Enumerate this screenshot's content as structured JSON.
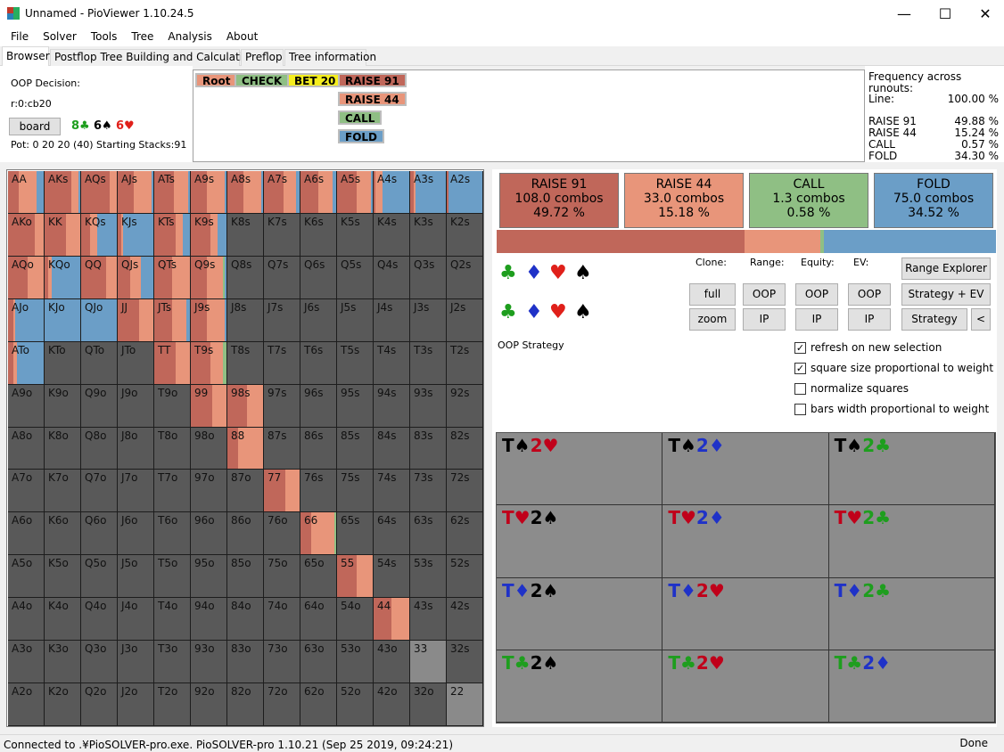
{
  "window": {
    "title": "Unnamed - PioViewer 1.10.24.5",
    "minimize": "—",
    "maximize": "☐",
    "close": "✕"
  },
  "menu": [
    "File",
    "Solver",
    "Tools",
    "Tree",
    "Analysis",
    "About"
  ],
  "tabs": [
    "Browser",
    "Postflop Tree Building and Calculations",
    "Preflop",
    "Tree information"
  ],
  "info": {
    "decision": "OOP Decision:",
    "node": "r:0:cb20",
    "board_button": "board",
    "board_cards": [
      {
        "text": "8♣",
        "color": "#1e9e1e"
      },
      {
        "text": "6♠",
        "color": "#000000"
      },
      {
        "text": "6♥",
        "color": "#e0201a"
      }
    ],
    "pot": "Pot: 0 20 20 (40) Starting Stacks:91"
  },
  "tree_line": [
    {
      "label": "Root",
      "color": "#e8957a"
    },
    {
      "label": "CHECK",
      "color": "#8fbf84"
    },
    {
      "label": "BET 20",
      "color": "#f5ee1e"
    },
    {
      "label": "RAISE 91",
      "color": "#c0675a"
    },
    {
      "label": "RAISE 44",
      "color": "#e8957a"
    },
    {
      "label": "CALL",
      "color": "#8fbf84"
    },
    {
      "label": "FOLD",
      "color": "#6b9ec7"
    }
  ],
  "frequency": {
    "title": "Frequency across runouts:",
    "line_label": "Line:",
    "line_value": "100.00 %",
    "rows": [
      {
        "label": "RAISE 91",
        "value": "49.88 %"
      },
      {
        "label": "RAISE 44",
        "value": "15.24 %"
      },
      {
        "label": "CALL",
        "value": "0.57 %"
      },
      {
        "label": "FOLD",
        "value": "34.30 %"
      }
    ]
  },
  "colors": {
    "raise91": "#c0675a",
    "raise44": "#e8957a",
    "call": "#8fbf84",
    "fold": "#6b9ec7",
    "empty": "#595959"
  },
  "grid": {
    "hands": [
      [
        "AA",
        "AKs",
        "AQs",
        "AJs",
        "ATs",
        "A9s",
        "A8s",
        "A7s",
        "A6s",
        "A5s",
        "A4s",
        "A3s",
        "A2s"
      ],
      [
        "AKo",
        "KK",
        "KQs",
        "KJs",
        "KTs",
        "K9s",
        "K8s",
        "K7s",
        "K6s",
        "K5s",
        "K4s",
        "K3s",
        "K2s"
      ],
      [
        "AQo",
        "KQo",
        "QQ",
        "QJs",
        "QTs",
        "Q9s",
        "Q8s",
        "Q7s",
        "Q6s",
        "Q5s",
        "Q4s",
        "Q3s",
        "Q2s"
      ],
      [
        "AJo",
        "KJo",
        "QJo",
        "JJ",
        "JTs",
        "J9s",
        "J8s",
        "J7s",
        "J6s",
        "J5s",
        "J4s",
        "J3s",
        "J2s"
      ],
      [
        "ATo",
        "KTo",
        "QTo",
        "JTo",
        "TT",
        "T9s",
        "T8s",
        "T7s",
        "T6s",
        "T5s",
        "T4s",
        "T3s",
        "T2s"
      ],
      [
        "A9o",
        "K9o",
        "Q9o",
        "J9o",
        "T9o",
        "99",
        "98s",
        "97s",
        "96s",
        "95s",
        "94s",
        "93s",
        "92s"
      ],
      [
        "A8o",
        "K8o",
        "Q8o",
        "J8o",
        "T8o",
        "98o",
        "88",
        "87s",
        "86s",
        "85s",
        "84s",
        "83s",
        "82s"
      ],
      [
        "A7o",
        "K7o",
        "Q7o",
        "J7o",
        "T7o",
        "97o",
        "87o",
        "77",
        "76s",
        "75s",
        "74s",
        "73s",
        "72s"
      ],
      [
        "A6o",
        "K6o",
        "Q6o",
        "J6o",
        "T6o",
        "96o",
        "86o",
        "76o",
        "66",
        "65s",
        "64s",
        "63s",
        "62s"
      ],
      [
        "A5o",
        "K5o",
        "Q5o",
        "J5o",
        "T5o",
        "95o",
        "85o",
        "75o",
        "65o",
        "55",
        "54s",
        "53s",
        "52s"
      ],
      [
        "A4o",
        "K4o",
        "Q4o",
        "J4o",
        "T4o",
        "94o",
        "84o",
        "74o",
        "64o",
        "54o",
        "44",
        "43s",
        "42s"
      ],
      [
        "A3o",
        "K3o",
        "Q3o",
        "J3o",
        "T3o",
        "93o",
        "83o",
        "73o",
        "63o",
        "53o",
        "43o",
        "33",
        "32s"
      ],
      [
        "A2o",
        "K2o",
        "Q2o",
        "J2o",
        "T2o",
        "92o",
        "82o",
        "72o",
        "62o",
        "52o",
        "42o",
        "32o",
        "22"
      ]
    ],
    "strategies": {
      "AA": [
        0.3,
        0.5,
        0,
        0.2
      ],
      "AKs": [
        0.75,
        0.2,
        0,
        0.05
      ],
      "AQs": [
        0.8,
        0.2,
        0,
        0
      ],
      "AJs": [
        0.45,
        0.5,
        0,
        0.05
      ],
      "ATs": [
        0.55,
        0.4,
        0,
        0.05
      ],
      "A9s": [
        0.45,
        0.5,
        0,
        0.05
      ],
      "A8s": [
        0.45,
        0.5,
        0,
        0.05
      ],
      "A7s": [
        0.55,
        0.35,
        0,
        0.1
      ],
      "A6s": [
        0.5,
        0.4,
        0,
        0.1
      ],
      "A5s": [
        0.55,
        0.4,
        0,
        0.05
      ],
      "A4s": [
        0.05,
        0.2,
        0,
        0.75
      ],
      "A3s": [
        0.1,
        0.05,
        0,
        0.85
      ],
      "A2s": [
        0.05,
        0,
        0,
        0.95
      ],
      "AKo": [
        0.75,
        0.25,
        0,
        0
      ],
      "KK": [
        0.6,
        0.4,
        0,
        0
      ],
      "KQs": [
        0.25,
        0.2,
        0,
        0.55
      ],
      "KJs": [
        0.1,
        0.05,
        0,
        0.85
      ],
      "KTs": [
        0.6,
        0.2,
        0,
        0.2
      ],
      "K9s": [
        0.55,
        0.2,
        0,
        0.25
      ],
      "AQo": [
        0.55,
        0.45,
        0,
        0
      ],
      "KQo": [
        0.1,
        0.1,
        0,
        0.8
      ],
      "QQ": [
        0.7,
        0.3,
        0,
        0
      ],
      "QJs": [
        0.35,
        0.3,
        0,
        0.35
      ],
      "QTs": [
        0.5,
        0.5,
        0,
        0
      ],
      "Q9s": [
        0.45,
        0.45,
        0.05,
        0.05
      ],
      "AJo": [
        0.15,
        0.05,
        0,
        0.8
      ],
      "KJo": [
        0,
        0,
        0,
        1
      ],
      "QJo": [
        0,
        0,
        0,
        1
      ],
      "JJ": [
        0.6,
        0.4,
        0,
        0
      ],
      "JTs": [
        0.5,
        0.4,
        0,
        0.1
      ],
      "J9s": [
        0.45,
        0.5,
        0,
        0.05
      ],
      "ATo": [
        0.15,
        0.1,
        0,
        0.75
      ],
      "TT": [
        0.6,
        0.4,
        0,
        0
      ],
      "T9s": [
        0.55,
        0.35,
        0.1,
        0
      ],
      "99": [
        0.6,
        0.4,
        0,
        0
      ],
      "98s": [
        0.55,
        0.45,
        0,
        0
      ],
      "88": [
        0.3,
        0.7,
        0,
        0
      ],
      "77": [
        0.6,
        0.4,
        0,
        0
      ],
      "66": [
        0.3,
        0.65,
        0.05,
        0
      ],
      "55": [
        0.55,
        0.45,
        0,
        0
      ],
      "44": [
        0.5,
        0.5,
        0,
        0
      ],
      "33": [
        0,
        0,
        0,
        0
      ],
      "22": [
        0,
        0,
        0,
        0
      ]
    }
  },
  "actions": [
    {
      "name": "RAISE 91",
      "combos": "108.0 combos",
      "pct": "49.72 %",
      "share": 0.4972
    },
    {
      "name": "RAISE 44",
      "combos": "33.0 combos",
      "pct": "15.18 %",
      "share": 0.1518
    },
    {
      "name": "CALL",
      "combos": "1.3 combos",
      "pct": "0.58 %",
      "share": 0.0058
    },
    {
      "name": "FOLD",
      "combos": "75.0 combos",
      "pct": "34.52 %",
      "share": 0.3452
    }
  ],
  "controls": {
    "clone_label": "Clone:",
    "range_label": "Range:",
    "equity_label": "Equity:",
    "ev_label": "EV:",
    "full": "full",
    "zoom": "zoom",
    "oop": "OOP",
    "ip": "IP",
    "range_explorer": "Range Explorer",
    "strategy_ev": "Strategy + EV",
    "strategy": "Strategy",
    "back": "<",
    "oop_strategy": "OOP Strategy",
    "checkboxes": [
      {
        "label": "refresh on new selection",
        "checked": true
      },
      {
        "label": "square size proportional to weight",
        "checked": true
      },
      {
        "label": "normalize squares",
        "checked": false
      },
      {
        "label": "bars width proportional to weight",
        "checked": false
      }
    ]
  },
  "combos": [
    [
      [
        [
          "T♠",
          "#000000"
        ],
        [
          "2♥",
          "#c0001a"
        ]
      ],
      [
        [
          "T♠",
          "#000000"
        ],
        [
          "2♦",
          "#1f32c8"
        ]
      ],
      [
        [
          "T♠",
          "#000000"
        ],
        [
          "2♣",
          "#1e9e1e"
        ]
      ]
    ],
    [
      [
        [
          "T♥",
          "#c0001a"
        ],
        [
          "2♠",
          "#000000"
        ]
      ],
      [
        [
          "T♥",
          "#c0001a"
        ],
        [
          "2♦",
          "#1f32c8"
        ]
      ],
      [
        [
          "T♥",
          "#c0001a"
        ],
        [
          "2♣",
          "#1e9e1e"
        ]
      ]
    ],
    [
      [
        [
          "T♦",
          "#1f32c8"
        ],
        [
          "2♠",
          "#000000"
        ]
      ],
      [
        [
          "T♦",
          "#1f32c8"
        ],
        [
          "2♥",
          "#c0001a"
        ]
      ],
      [
        [
          "T♦",
          "#1f32c8"
        ],
        [
          "2♣",
          "#1e9e1e"
        ]
      ]
    ],
    [
      [
        [
          "T♣",
          "#1e9e1e"
        ],
        [
          "2♠",
          "#000000"
        ]
      ],
      [
        [
          "T♣",
          "#1e9e1e"
        ],
        [
          "2♥",
          "#c0001a"
        ]
      ],
      [
        [
          "T♣",
          "#1e9e1e"
        ],
        [
          "2♦",
          "#1f32c8"
        ]
      ]
    ]
  ],
  "status": {
    "left": "Connected to .¥PioSOLVER-pro.exe. PioSOLVER-pro 1.10.21 (Sep 25 2019, 09:24:21)",
    "right": "Done"
  }
}
